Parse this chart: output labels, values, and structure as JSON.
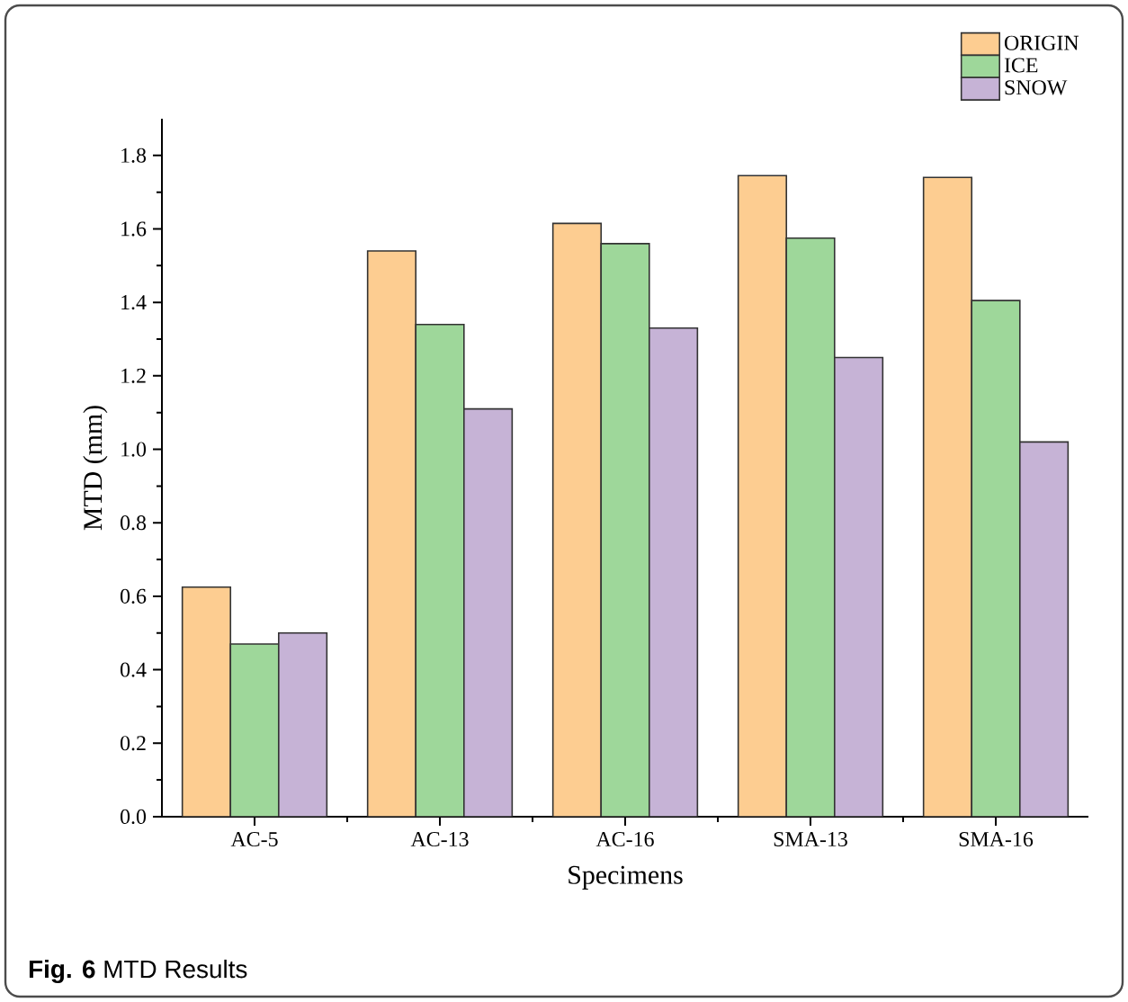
{
  "chart_data": {
    "type": "bar",
    "xlabel": "Specimens",
    "ylabel": "MTD (mm)",
    "categories": [
      "AC-5",
      "AC-13",
      "AC-16",
      "SMA-13",
      "SMA-16"
    ],
    "series": [
      {
        "name": "ORIGIN",
        "color": "#fdcd91",
        "values": [
          0.625,
          1.54,
          1.615,
          1.745,
          1.74
        ]
      },
      {
        "name": "ICE",
        "color": "#9ed79a",
        "values": [
          0.47,
          1.34,
          1.56,
          1.575,
          1.405
        ]
      },
      {
        "name": "SNOW",
        "color": "#c6b3d6",
        "values": [
          0.5,
          1.11,
          1.33,
          1.25,
          1.02
        ]
      }
    ],
    "ylim": [
      0,
      1.9
    ],
    "yticks": [
      {
        "value": 0,
        "label": "0.0"
      },
      0.2,
      0.4,
      0.6,
      0.8,
      {
        "value": 1,
        "label": "1.0"
      },
      1.2,
      1.4,
      1.6,
      1.8
    ],
    "legend": "top right",
    "grid": false,
    "annotations": [
      "**Fig. 6** MTD Results"
    ]
  }
}
